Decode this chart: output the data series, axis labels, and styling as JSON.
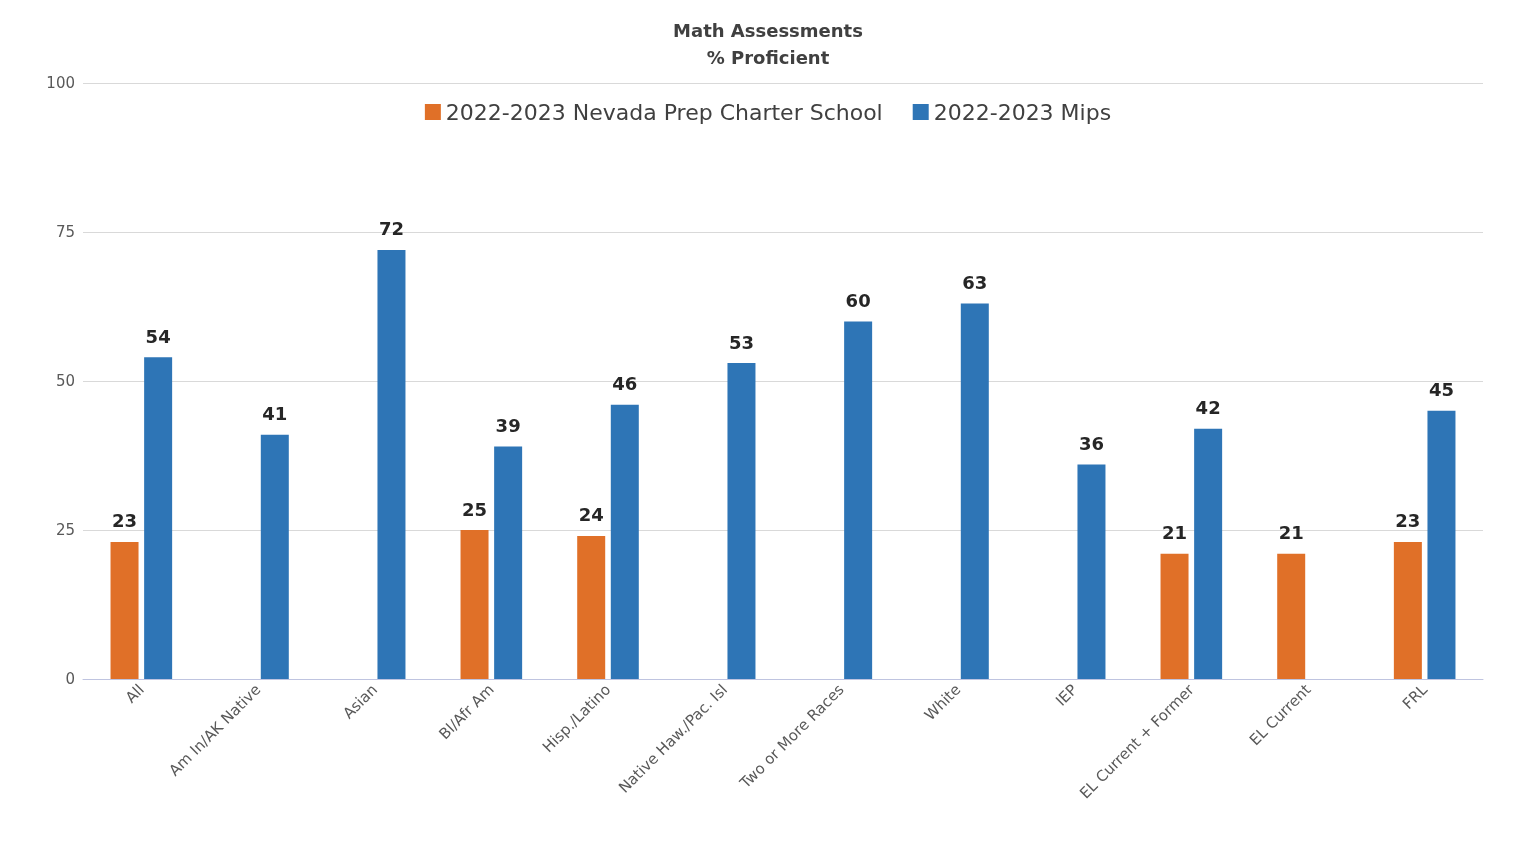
{
  "chart_data": {
    "type": "bar",
    "title": "Math Assessments\n% Proficient",
    "categories": [
      "All",
      "Am In/AK Native",
      "Asian",
      "Bl/Afr Am",
      "Hisp./Latino",
      "Native Haw./Pac. Isl",
      "Two or More Races",
      "White",
      "IEP",
      "EL Current + Former",
      "EL Current",
      "FRL"
    ],
    "series": [
      {
        "name": "2022-2023 Nevada Prep Charter School",
        "color": "#e07028",
        "values": [
          23,
          null,
          null,
          25,
          24,
          null,
          null,
          null,
          null,
          21,
          21,
          23
        ]
      },
      {
        "name": "2022-2023 Mips",
        "color": "#2e75b6",
        "values": [
          54,
          41,
          72,
          39,
          46,
          53,
          60,
          63,
          36,
          42,
          null,
          45
        ]
      }
    ],
    "ylim": [
      0,
      100
    ],
    "yticks": [
      0,
      25,
      50,
      75,
      100
    ],
    "grid": "y",
    "legend": "top",
    "data_labels": true
  }
}
